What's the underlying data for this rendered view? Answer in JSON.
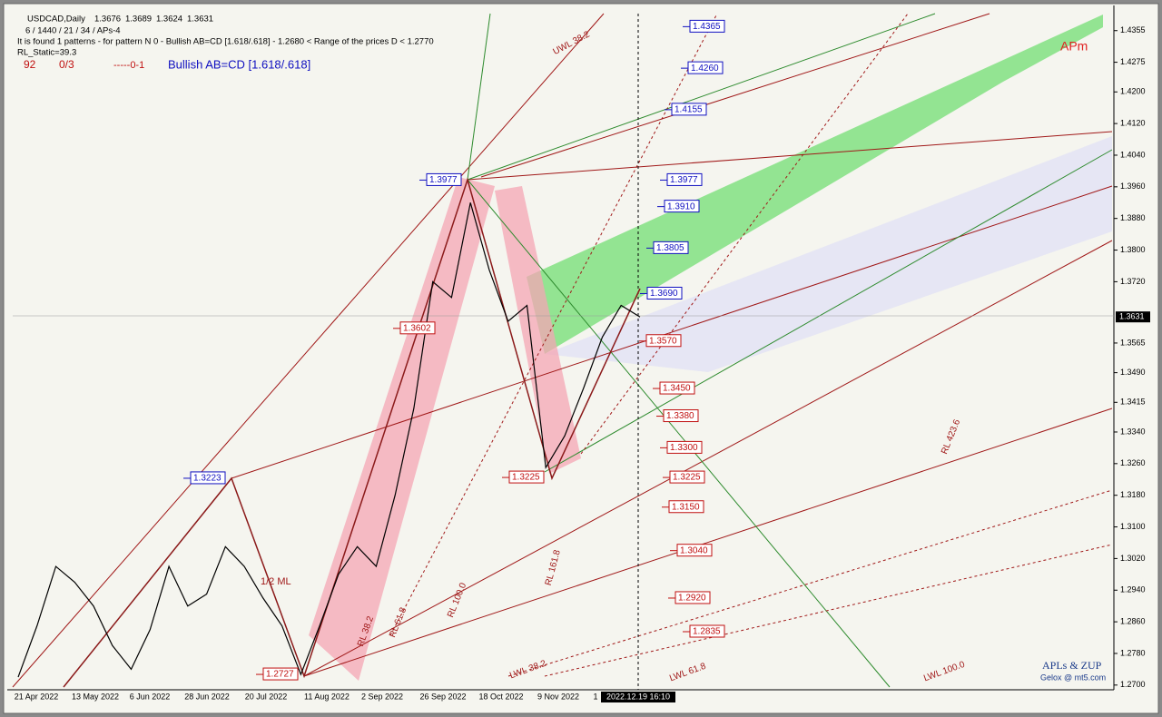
{
  "header": {
    "symbol": "USDCAD,Daily",
    "ohlc": [
      1.3676,
      1.3689,
      1.3624,
      1.3631
    ],
    "settings": "6 / 1440 / 21 / 34 / APs-4",
    "found": "It is found 1 patterns  -  for pattern N 0 - Bullish AB=CD [1.618/.618] - 1.2680 < Range of the prices D < 1.2770",
    "rl_static": "RL_Static=39.3",
    "count": "92",
    "ratio": "0/3",
    "dash": "-----0-1",
    "pattern": "Bullish AB=CD [1.618/.618]",
    "brand": "APm"
  },
  "footer": {
    "title": "APLs & ZUP",
    "site": "Gelox @ mt5.com"
  },
  "line_labels": [
    "UWL 38.2",
    "1/2 ML",
    "LWL 38.2",
    "LWL 61.8",
    "LWL 100.0",
    "RL 423.6",
    "RL 61.8",
    "RL 100.0",
    "RL 161.8",
    "RL 38.2"
  ],
  "chart_data": {
    "type": "line",
    "title": "USDCAD,Daily",
    "xlabels": [
      "21 Apr 2022",
      "13 May 2022",
      "6 Jun 2022",
      "28 Jun 2022",
      "20 Jul 2022",
      "11 Aug 2022",
      "2 Sep 2022",
      "26 Sep 2022",
      "18 Oct 2022",
      "9 Nov 2022",
      "1"
    ],
    "cursor_label": "2022.12.19 16:10",
    "series": [
      {
        "name": "USDCAD",
        "color": "#000000",
        "values": [
          1.272,
          1.285,
          1.3,
          1.296,
          1.29,
          1.28,
          1.274,
          1.284,
          1.3,
          1.29,
          1.293,
          1.305,
          1.3,
          1.292,
          1.285,
          1.2727,
          1.285,
          1.298,
          1.305,
          1.3,
          1.318,
          1.34,
          1.372,
          1.368,
          1.392,
          1.375,
          1.362,
          1.366,
          1.325,
          1.333,
          1.345,
          1.358,
          1.366,
          1.3631
        ]
      }
    ],
    "ylim": [
      1.2695,
      1.4398
    ],
    "yticks": [
      1.4355,
      1.4275,
      {
        "value": 1.42,
        "label": "1.4200"
      },
      {
        "value": 1.412,
        "label": "1.4120"
      },
      {
        "value": 1.404,
        "label": "1.4040"
      },
      {
        "value": 1.396,
        "label": "1.3960"
      },
      {
        "value": 1.388,
        "label": "1.3880"
      },
      {
        "value": 1.38,
        "label": "1.3800"
      },
      {
        "value": 1.372,
        "label": "1.3720"
      },
      1.3565,
      {
        "value": 1.349,
        "label": "1.3490"
      },
      1.3415,
      {
        "value": 1.334,
        "label": "1.3340"
      },
      {
        "value": 1.326,
        "label": "1.3260"
      },
      {
        "value": 1.318,
        "label": "1.3180"
      },
      {
        "value": 1.31,
        "label": "1.3100"
      },
      {
        "value": 1.302,
        "label": "1.3020"
      },
      {
        "value": 1.294,
        "label": "1.2940"
      },
      {
        "value": 1.286,
        "label": "1.2860"
      },
      {
        "value": 1.278,
        "label": "1.2780"
      },
      {
        "value": 1.27,
        "label": "1.2700"
      }
    ],
    "current_price": 1.3631,
    "upper_color": "#1010c0",
    "lower_color": "#c01010",
    "levels_upper": [
      1.4365,
      {
        "value": 1.426,
        "label": "1.4260"
      },
      1.4155,
      1.3977,
      {
        "value": 1.391,
        "label": "1.3910"
      },
      1.3805,
      {
        "value": 1.369,
        "label": "1.3690"
      }
    ],
    "levels_lower": [
      {
        "value": 1.357,
        "label": "1.3570"
      },
      {
        "value": 1.345,
        "label": "1.3450"
      },
      {
        "value": 1.338,
        "label": "1.3380"
      },
      {
        "value": 1.33,
        "label": "1.3300"
      },
      1.3225,
      {
        "value": 1.315,
        "label": "1.3150"
      },
      {
        "value": 1.304,
        "label": "1.3040"
      },
      {
        "value": 1.292,
        "label": "1.2920"
      },
      1.2835
    ],
    "pivots": [
      {
        "value": 1.3977,
        "color": "#1010c0"
      },
      {
        "value": 1.3223,
        "color": "#1010c0"
      },
      {
        "value": 1.2727,
        "color": "#c01010"
      },
      {
        "value": 1.3602,
        "color": "#c01010"
      },
      {
        "value": 1.3225,
        "color": "#c01010"
      }
    ]
  }
}
